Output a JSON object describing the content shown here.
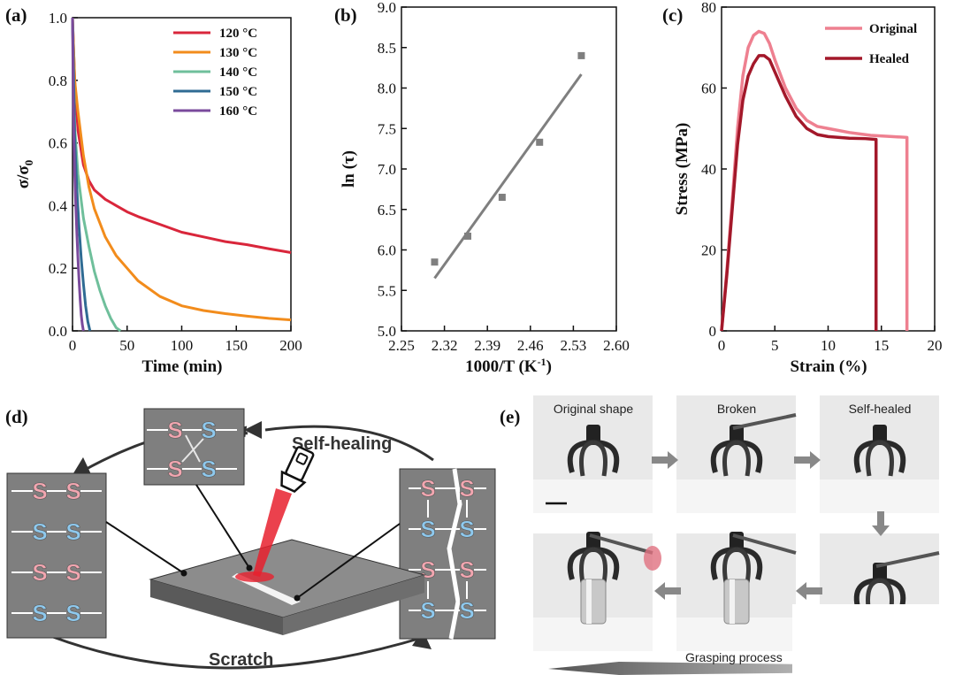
{
  "panel_labels": {
    "a": "(a)",
    "b": "(b)",
    "c": "(c)",
    "d": "(d)",
    "e": "(e)"
  },
  "chart_data": [
    {
      "type": "line",
      "panel": "(a)",
      "xlabel": "Time  (min)",
      "ylabel": "σ/σ₀",
      "xlim": [
        0,
        200
      ],
      "ylim": [
        0,
        1.0
      ],
      "xticks": [
        "0",
        "50",
        "100",
        "150",
        "200"
      ],
      "yticks": [
        "0.0",
        "0.2",
        "0.4",
        "0.6",
        "0.8",
        "1.0"
      ],
      "legend_position": "top-right",
      "series": [
        {
          "name": "120 °C",
          "color": "#d9263b",
          "x": [
            0,
            2,
            5,
            10,
            15,
            20,
            30,
            40,
            50,
            60,
            80,
            100,
            120,
            140,
            160,
            180,
            200
          ],
          "y": [
            1.0,
            0.8,
            0.64,
            0.53,
            0.48,
            0.45,
            0.42,
            0.4,
            0.38,
            0.365,
            0.34,
            0.315,
            0.3,
            0.285,
            0.275,
            0.262,
            0.25
          ]
        },
        {
          "name": "130 °C",
          "color": "#f28c1c",
          "x": [
            0,
            2,
            5,
            10,
            15,
            20,
            30,
            40,
            50,
            60,
            80,
            100,
            120,
            140,
            160,
            180,
            200
          ],
          "y": [
            1.0,
            0.8,
            0.7,
            0.56,
            0.46,
            0.39,
            0.3,
            0.24,
            0.2,
            0.16,
            0.11,
            0.08,
            0.065,
            0.055,
            0.047,
            0.04,
            0.035
          ]
        },
        {
          "name": "140 °C",
          "color": "#6fbf9b",
          "x": [
            0,
            2,
            5,
            10,
            15,
            20,
            25,
            30,
            35,
            40,
            44
          ],
          "y": [
            1.0,
            0.65,
            0.5,
            0.36,
            0.27,
            0.19,
            0.13,
            0.08,
            0.04,
            0.01,
            0.0
          ]
        },
        {
          "name": "150 °C",
          "color": "#2f6b93",
          "x": [
            0,
            2,
            4,
            6,
            8,
            10,
            12,
            14,
            16
          ],
          "y": [
            1.0,
            0.62,
            0.45,
            0.33,
            0.23,
            0.15,
            0.08,
            0.03,
            0.0
          ]
        },
        {
          "name": "160 °C",
          "color": "#7a4a9c",
          "x": [
            0,
            1,
            2,
            3,
            4,
            5,
            6,
            7,
            8,
            9,
            10
          ],
          "y": [
            1.0,
            0.65,
            0.5,
            0.4,
            0.31,
            0.23,
            0.16,
            0.1,
            0.05,
            0.02,
            0.0
          ]
        }
      ]
    },
    {
      "type": "scatter",
      "panel": "(b)",
      "xlabel": "1000/T (K⁻¹)",
      "ylabel": "ln (τ)",
      "xlim": [
        2.25,
        2.6
      ],
      "ylim": [
        5.0,
        9.0
      ],
      "xticks": [
        "2.25",
        "2.32",
        "2.39",
        "2.46",
        "2.53",
        "2.60"
      ],
      "yticks": [
        "5.0",
        "5.5",
        "6.0",
        "6.5",
        "7.0",
        "7.5",
        "8.0",
        "8.5",
        "9.0"
      ],
      "points": {
        "x": [
          2.304,
          2.358,
          2.414,
          2.475,
          2.543
        ],
        "y": [
          5.85,
          6.17,
          6.65,
          7.33,
          8.4
        ],
        "color": "#7f7f7f"
      },
      "fit_line": {
        "x": [
          2.304,
          2.543
        ],
        "y": [
          5.65,
          8.17
        ],
        "color": "#7f7f7f"
      }
    },
    {
      "type": "line",
      "panel": "(c)",
      "xlabel": "Strain  (%)",
      "ylabel": "Stress  (MPa)",
      "xlim": [
        0,
        20
      ],
      "ylim": [
        0,
        80
      ],
      "xticks": [
        "0",
        "5",
        "10",
        "15",
        "20"
      ],
      "yticks": [
        "0",
        "20",
        "40",
        "60",
        "80"
      ],
      "legend_position": "top-right",
      "series": [
        {
          "name": "Original",
          "color": "#ee8090",
          "x": [
            0,
            0.5,
            1.0,
            1.5,
            2.0,
            2.5,
            3.0,
            3.5,
            4.0,
            4.5,
            5.0,
            6.0,
            7.0,
            8.0,
            9.0,
            10.0,
            12.0,
            14.0,
            16.0,
            17.4,
            17.4
          ],
          "y": [
            0,
            15,
            32,
            50,
            63,
            70,
            73,
            74,
            73.5,
            71,
            67,
            60,
            55,
            52,
            50.5,
            50,
            49,
            48.3,
            48,
            47.8,
            0
          ]
        },
        {
          "name": "Healed",
          "color": "#a3182a",
          "x": [
            0,
            0.5,
            1.0,
            1.5,
            2.0,
            2.5,
            3.0,
            3.5,
            4.0,
            4.5,
            5.0,
            6.0,
            7.0,
            8.0,
            9.0,
            10.0,
            12.0,
            13.5,
            14.5,
            14.5
          ],
          "y": [
            0,
            14,
            30,
            46,
            57,
            63,
            66,
            68,
            68,
            67,
            64,
            58,
            53,
            50,
            48.5,
            48,
            47.6,
            47.5,
            47.3,
            0
          ]
        }
      ]
    }
  ],
  "schematic_d": {
    "top_label": "Self-healing",
    "bottom_label": "Scratch",
    "bond_letter": "S",
    "colors": {
      "s_pink": "#f2a6b0",
      "s_blue": "#8ec9ee",
      "panel_gray": "#7f7f7f",
      "laser_red": "#e8202e"
    }
  },
  "photos_e": {
    "captions": [
      "Original shape",
      "Broken",
      "Self-healed"
    ],
    "bottom_caption": "Grasping process"
  }
}
